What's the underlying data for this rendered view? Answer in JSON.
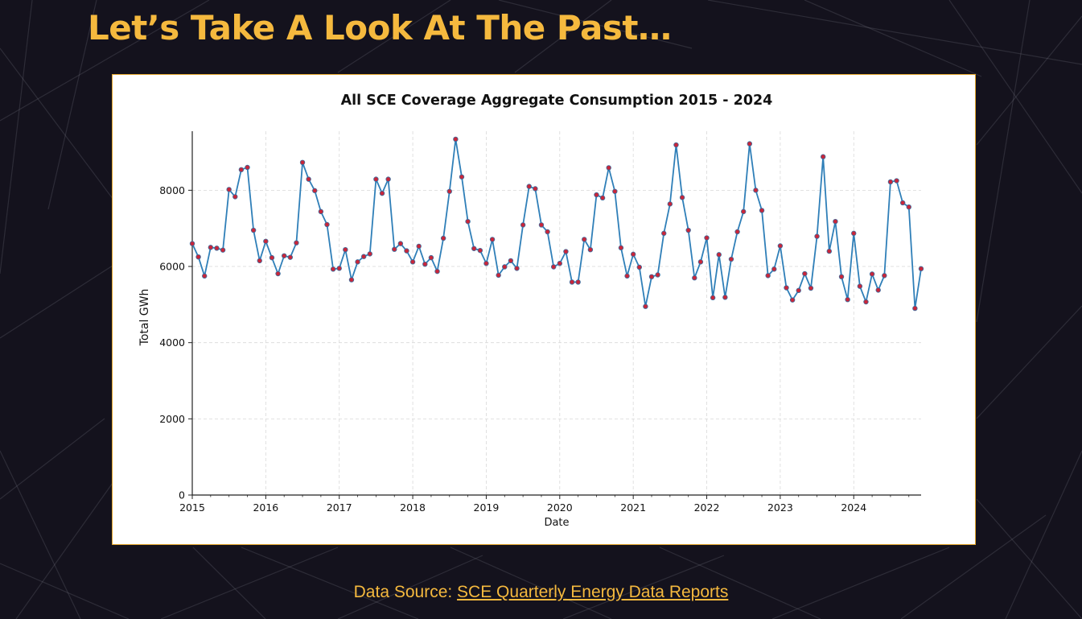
{
  "slide": {
    "title": "Let’s Take A Look At The Past…",
    "source_prefix": "Data Source: ",
    "source_link": "SCE Quarterly Energy Data Reports"
  },
  "colors": {
    "background": "#14121d",
    "accent": "#f5b93e",
    "line": "#2f7fb8",
    "marker": "#c8263a"
  },
  "chart_data": {
    "type": "line",
    "title": "All SCE Coverage Aggregate Consumption 2015 - 2024",
    "xlabel": "Date",
    "ylabel": "Total GWh",
    "xlim": [
      "2015-01",
      "2024-12"
    ],
    "ylim": [
      0,
      9550
    ],
    "x_ticks": [
      "2015",
      "2016",
      "2017",
      "2018",
      "2019",
      "2020",
      "2021",
      "2022",
      "2023",
      "2024"
    ],
    "y_ticks": [
      0,
      2000,
      4000,
      6000,
      8000
    ],
    "grid": true,
    "legend": "none",
    "series": [
      {
        "x": [
          "2015-01",
          "2015-02",
          "2015-03",
          "2015-04",
          "2015-05",
          "2015-06",
          "2015-07",
          "2015-08",
          "2015-09",
          "2015-10",
          "2015-11",
          "2015-12",
          "2016-01",
          "2016-02",
          "2016-03",
          "2016-04",
          "2016-05",
          "2016-06",
          "2016-07",
          "2016-08",
          "2016-09",
          "2016-10",
          "2016-11",
          "2016-12",
          "2017-01",
          "2017-02",
          "2017-03",
          "2017-04",
          "2017-05",
          "2017-06",
          "2017-07",
          "2017-08",
          "2017-09",
          "2017-10",
          "2017-11",
          "2017-12",
          "2018-01",
          "2018-02",
          "2018-03",
          "2018-04",
          "2018-05",
          "2018-06",
          "2018-07",
          "2018-08",
          "2018-09",
          "2018-10",
          "2018-11",
          "2018-12",
          "2019-01",
          "2019-02",
          "2019-03",
          "2019-04",
          "2019-05",
          "2019-06",
          "2019-07",
          "2019-08",
          "2019-09",
          "2019-10",
          "2019-11",
          "2019-12",
          "2020-01",
          "2020-02",
          "2020-03",
          "2020-04",
          "2020-05",
          "2020-06",
          "2020-07",
          "2020-08",
          "2020-09",
          "2020-10",
          "2020-11",
          "2020-12",
          "2021-01",
          "2021-02",
          "2021-03",
          "2021-04",
          "2021-05",
          "2021-06",
          "2021-07",
          "2021-08",
          "2021-09",
          "2021-10",
          "2021-11",
          "2021-12",
          "2022-01",
          "2022-02",
          "2022-03",
          "2022-04",
          "2022-05",
          "2022-06",
          "2022-07",
          "2022-08",
          "2022-09",
          "2022-10",
          "2022-11",
          "2022-12",
          "2023-01",
          "2023-02",
          "2023-03",
          "2023-04",
          "2023-05",
          "2023-06",
          "2023-07",
          "2023-08",
          "2023-09",
          "2023-10",
          "2023-11",
          "2023-12",
          "2024-01",
          "2024-02",
          "2024-03",
          "2024-04",
          "2024-05",
          "2024-06",
          "2024-07",
          "2024-08",
          "2024-09",
          "2024-10",
          "2024-11",
          "2024-12"
        ],
        "values": [
          6600,
          6250,
          5750,
          6500,
          6480,
          6430,
          8020,
          7830,
          8540,
          8600,
          6950,
          6150,
          6660,
          6230,
          5810,
          6280,
          6240,
          6620,
          8730,
          8290,
          7990,
          7440,
          7100,
          5930,
          5950,
          6440,
          5650,
          6120,
          6260,
          6330,
          8290,
          7920,
          8290,
          6450,
          6600,
          6410,
          6120,
          6530,
          6060,
          6230,
          5870,
          6740,
          7970,
          9340,
          8350,
          7180,
          6470,
          6420,
          6080,
          6710,
          5770,
          5990,
          6150,
          5950,
          7090,
          8100,
          8040,
          7090,
          6910,
          5990,
          6080,
          6390,
          5590,
          5590,
          6710,
          6440,
          7880,
          7800,
          8590,
          7970,
          6490,
          5750,
          6320,
          5980,
          4950,
          5730,
          5780,
          6870,
          7640,
          9190,
          7810,
          6950,
          5700,
          6120,
          6750,
          5180,
          6310,
          5190,
          6190,
          6910,
          7440,
          9220,
          8000,
          7470,
          5760,
          5930,
          6540,
          5440,
          5120,
          5370,
          5810,
          5430,
          6790,
          8880,
          6400,
          7180,
          5730,
          5130,
          6870,
          5480,
          5070,
          5800,
          5380,
          5760,
          8220,
          8250,
          7670,
          7560,
          4900,
          5940
        ]
      }
    ]
  }
}
